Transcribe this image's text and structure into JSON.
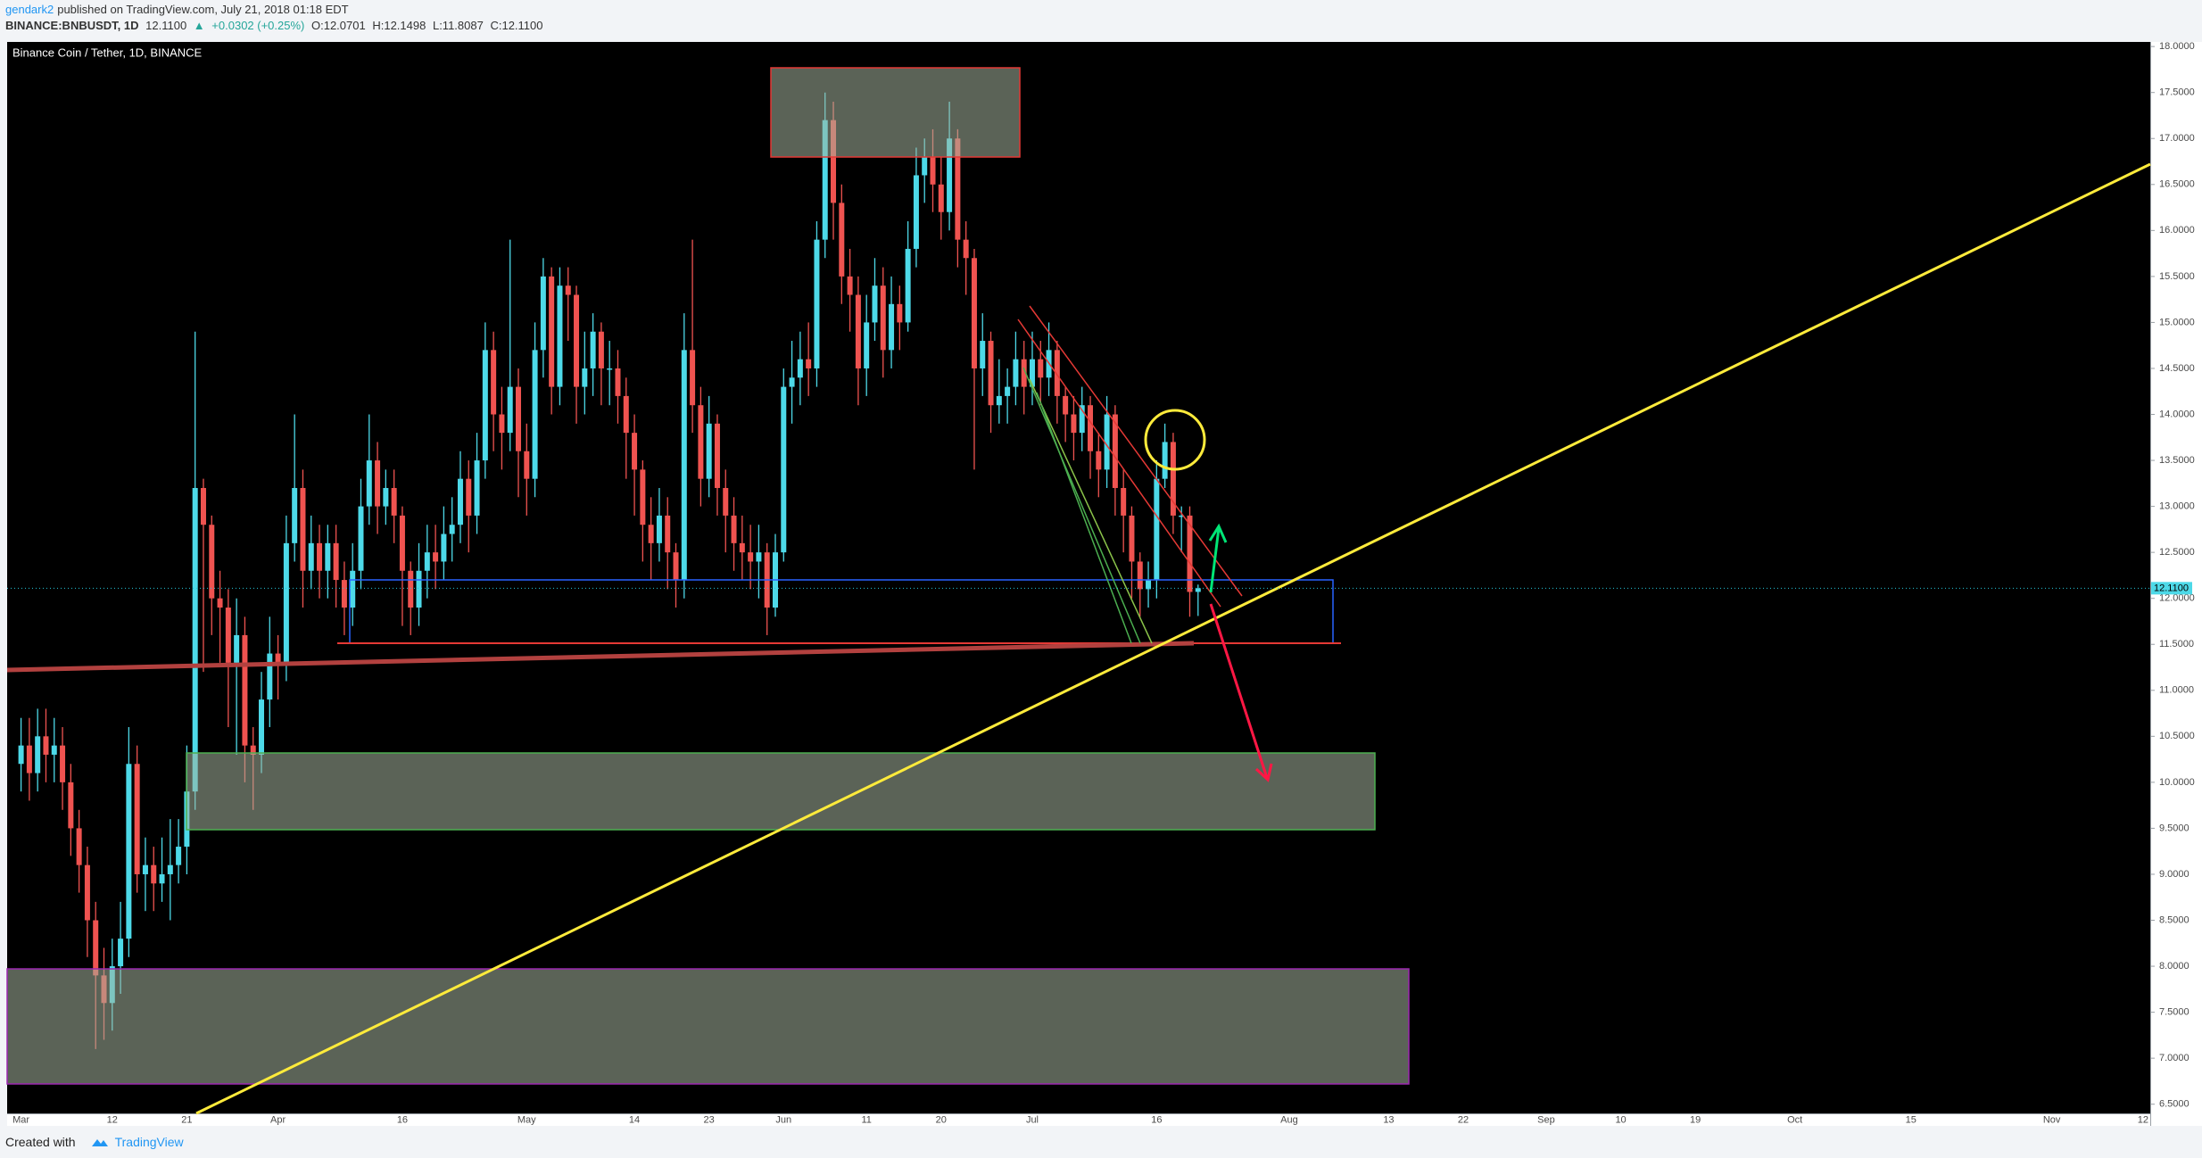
{
  "header": {
    "author": "gendark2",
    "published": "published on TradingView.com, July 21, 2018 01:18 EDT",
    "symbol": "BINANCE:BNBUSDT, 1D",
    "last": "12.1100",
    "arrow": "▲",
    "change": "+0.0302 (+0.25%)",
    "ohlc": [
      "O:12.0701",
      "H:12.1498",
      "L:11.8087",
      "C:12.1100"
    ]
  },
  "footer": {
    "text": "Created with",
    "brand": "TradingView"
  },
  "chart_data": {
    "type": "candlestick",
    "title": "Binance Coin / Tether, 1D, BINANCE",
    "up_color": "#4dd9e8",
    "down_color": "#ef5350",
    "grid": false,
    "ylim": [
      6.4,
      18.05
    ],
    "yticks": [
      {
        "value": 6.5,
        "label": "6.5000"
      },
      {
        "value": 7,
        "label": "7.0000"
      },
      {
        "value": 7.5,
        "label": "7.5000"
      },
      {
        "value": 8,
        "label": "8.0000"
      },
      {
        "value": 8.5,
        "label": "8.5000"
      },
      {
        "value": 9,
        "label": "9.0000"
      },
      {
        "value": 9.5,
        "label": "9.5000"
      },
      {
        "value": 10,
        "label": "10.0000"
      },
      {
        "value": 10.5,
        "label": "10.5000"
      },
      {
        "value": 11,
        "label": "11.0000"
      },
      {
        "value": 11.5,
        "label": "11.5000"
      },
      {
        "value": 12,
        "label": "12.0000"
      },
      {
        "value": 12.5,
        "label": "12.5000"
      },
      {
        "value": 13,
        "label": "13.0000"
      },
      {
        "value": 13.5,
        "label": "13.5000"
      },
      {
        "value": 14,
        "label": "14.0000"
      },
      {
        "value": 14.5,
        "label": "14.5000"
      },
      {
        "value": 15,
        "label": "15.0000"
      },
      {
        "value": 15.5,
        "label": "15.5000"
      },
      {
        "value": 16,
        "label": "16.0000"
      },
      {
        "value": 16.5,
        "label": "16.5000"
      },
      {
        "value": 17,
        "label": "17.0000"
      },
      {
        "value": 17.5,
        "label": "17.5000"
      },
      {
        "value": 18,
        "label": "18.0000"
      }
    ],
    "categories": [
      "Mar",
      null,
      null,
      null,
      null,
      null,
      null,
      null,
      null,
      null,
      null,
      "12",
      null,
      null,
      null,
      null,
      null,
      null,
      null,
      null,
      "21",
      null,
      null,
      null,
      null,
      null,
      null,
      null,
      null,
      null,
      null,
      "Apr",
      null,
      null,
      null,
      null,
      null,
      null,
      null,
      null,
      null,
      null,
      null,
      null,
      null,
      null,
      "16",
      null,
      null,
      null,
      null,
      null,
      null,
      null,
      null,
      null,
      null,
      null,
      null,
      null,
      null,
      "May",
      null,
      null,
      null,
      null,
      null,
      null,
      null,
      null,
      null,
      null,
      null,
      null,
      "14",
      null,
      null,
      null,
      null,
      null,
      null,
      null,
      null,
      "23",
      null,
      null,
      null,
      null,
      null,
      null,
      null,
      null,
      "Jun",
      null,
      null,
      null,
      null,
      null,
      null,
      null,
      null,
      null,
      "11",
      null,
      null,
      null,
      null,
      null,
      null,
      null,
      null,
      "20",
      null,
      null,
      null,
      null,
      null,
      null,
      null,
      null,
      null,
      null,
      "Jul",
      null,
      null,
      null,
      null,
      null,
      null,
      null,
      null,
      null,
      null,
      null,
      null,
      null,
      null,
      "16",
      null,
      null,
      null,
      null,
      null,
      null,
      null,
      null,
      null,
      null,
      null,
      null,
      null,
      null,
      null,
      "Aug",
      null,
      null,
      null,
      null,
      null,
      null,
      null,
      null,
      null,
      null,
      null,
      "13",
      null,
      null,
      null,
      null,
      null,
      null,
      null,
      null,
      "22",
      null,
      null,
      null,
      null,
      null,
      null,
      null,
      null,
      null,
      "Sep",
      null,
      null,
      null,
      null,
      null,
      null,
      null,
      null,
      "10",
      null,
      null,
      null,
      null,
      null,
      null,
      null,
      null,
      "19",
      null,
      null,
      null,
      null,
      null,
      null,
      null,
      null,
      null,
      null,
      null,
      "Oct",
      null,
      null,
      null,
      null,
      null,
      null,
      null,
      null,
      null,
      null,
      null,
      null,
      null,
      "15",
      null,
      null,
      null,
      null,
      null,
      null,
      null,
      null,
      null,
      null,
      null,
      null,
      null,
      null,
      null,
      null,
      "Nov",
      null,
      null,
      null,
      null,
      null,
      null,
      null,
      null,
      null,
      null,
      "12"
    ],
    "open": [
      10.2,
      10.4,
      10.1,
      10.5,
      10.3,
      10.4,
      10.0,
      9.5,
      9.1,
      8.5,
      7.9,
      7.6,
      8.0,
      8.3,
      10.2,
      9.0,
      9.1,
      8.9,
      9.0,
      9.1,
      9.3,
      9.9,
      13.2,
      12.8,
      12.0,
      11.9,
      11.3,
      11.6,
      10.4,
      10.3,
      10.9,
      11.4,
      11.3,
      12.6,
      13.2,
      12.3,
      12.6,
      12.3,
      12.6,
      12.2,
      11.9,
      12.3,
      13.0,
      13.5,
      13.0,
      13.2,
      12.9,
      12.3,
      11.9,
      12.3,
      12.5,
      12.4,
      12.7,
      12.8,
      13.3,
      12.9,
      13.5,
      14.7,
      14.0,
      13.8,
      14.3,
      13.6,
      13.3,
      14.7,
      15.5,
      14.3,
      15.4,
      15.3,
      14.3,
      14.5,
      14.9,
      14.5,
      14.5,
      14.2,
      13.8,
      13.4,
      12.8,
      12.6,
      12.9,
      12.5,
      12.2,
      14.7,
      14.1,
      13.3,
      13.9,
      13.2,
      12.9,
      12.6,
      12.5,
      12.4,
      12.5,
      11.9,
      12.5,
      14.3,
      14.4,
      14.6,
      14.5,
      15.9,
      17.2,
      16.3,
      15.5,
      15.3,
      14.5,
      15.0,
      15.4,
      14.7,
      15.2,
      15.0,
      15.8,
      16.6,
      16.8,
      16.5,
      16.2,
      17.0,
      15.9,
      15.7,
      14.5,
      14.8,
      14.1,
      14.2,
      14.3,
      14.6,
      14.3,
      14.6,
      14.4,
      14.7,
      14.2,
      14.0,
      13.8,
      14.1,
      13.6,
      13.4,
      14.0,
      13.2,
      12.9,
      12.4,
      12.1,
      12.2,
      13.3,
      13.7,
      12.9,
      12.9,
      12.0701,
      null,
      null,
      null,
      null,
      null,
      null,
      null,
      null,
      null,
      null,
      null,
      null,
      null,
      null,
      null,
      null,
      null,
      null,
      null,
      null,
      null,
      null,
      null,
      null,
      null,
      null,
      null,
      null,
      null,
      null,
      null,
      null,
      null,
      null,
      null,
      null,
      null,
      null,
      null,
      null,
      null,
      null,
      null,
      null,
      null,
      null,
      null,
      null,
      null,
      null,
      null,
      null,
      null,
      null,
      null,
      null,
      null,
      null,
      null,
      null,
      null,
      null,
      null,
      null,
      null,
      null,
      null,
      null,
      null,
      null,
      null,
      null,
      null,
      null,
      null,
      null,
      null,
      null,
      null,
      null,
      null,
      null,
      null,
      null,
      null,
      null,
      null,
      null,
      null,
      null,
      null,
      null,
      null,
      null,
      null,
      null,
      null,
      null,
      null,
      null,
      null,
      null,
      null,
      null,
      null,
      null,
      null,
      null,
      null,
      null,
      null,
      null,
      null,
      null
    ],
    "high": [
      10.7,
      10.7,
      10.8,
      10.8,
      10.7,
      10.6,
      10.2,
      9.7,
      9.3,
      8.7,
      8.2,
      8.3,
      8.7,
      10.6,
      10.4,
      9.4,
      9.3,
      9.4,
      9.6,
      9.6,
      10.4,
      14.9,
      13.3,
      12.9,
      12.3,
      12.1,
      12.0,
      11.8,
      10.6,
      11.2,
      11.8,
      11.6,
      12.9,
      14.0,
      13.4,
      12.9,
      12.8,
      12.8,
      12.8,
      12.4,
      12.6,
      13.3,
      14.0,
      13.7,
      13.4,
      13.4,
      13.0,
      12.4,
      12.6,
      12.8,
      12.8,
      13.0,
      13.1,
      13.6,
      13.5,
      13.8,
      15.0,
      14.9,
      14.3,
      15.9,
      14.5,
      13.9,
      15.0,
      15.7,
      15.6,
      15.6,
      15.6,
      15.4,
      14.9,
      15.1,
      15.0,
      14.8,
      14.7,
      14.4,
      14.0,
      13.5,
      13.1,
      13.2,
      13.1,
      12.6,
      15.1,
      15.9,
      14.3,
      14.2,
      14.0,
      13.4,
      13.1,
      12.9,
      12.8,
      12.8,
      12.6,
      12.7,
      14.5,
      14.8,
      14.9,
      15.0,
      16.1,
      17.5,
      17.4,
      16.5,
      15.8,
      15.5,
      15.3,
      15.7,
      15.6,
      15.5,
      15.4,
      16.1,
      16.9,
      17.0,
      17.1,
      16.8,
      17.4,
      17.1,
      16.1,
      15.8,
      15.1,
      14.9,
      14.6,
      14.5,
      14.9,
      14.8,
      14.9,
      14.8,
      15.0,
      14.8,
      14.3,
      14.2,
      14.3,
      14.2,
      13.8,
      14.2,
      14.1,
      13.4,
      13.0,
      12.5,
      12.4,
      13.5,
      13.9,
      13.8,
      13.0,
      13.0,
      12.1498,
      null,
      null,
      null,
      null,
      null,
      null,
      null,
      null,
      null,
      null,
      null,
      null,
      null,
      null,
      null,
      null,
      null,
      null,
      null,
      null,
      null,
      null,
      null,
      null,
      null,
      null,
      null,
      null,
      null,
      null,
      null,
      null,
      null,
      null,
      null,
      null,
      null,
      null,
      null,
      null,
      null,
      null,
      null,
      null,
      null,
      null,
      null,
      null,
      null,
      null,
      null,
      null,
      null,
      null,
      null,
      null,
      null,
      null,
      null,
      null,
      null,
      null,
      null,
      null,
      null,
      null,
      null,
      null,
      null,
      null,
      null,
      null,
      null,
      null,
      null,
      null,
      null,
      null,
      null,
      null,
      null,
      null,
      null,
      null,
      null,
      null,
      null,
      null,
      null,
      null,
      null,
      null,
      null,
      null,
      null,
      null,
      null,
      null,
      null,
      null,
      null,
      null,
      null,
      null,
      null,
      null,
      null,
      null,
      null,
      null,
      null,
      null,
      null,
      null
    ],
    "low": [
      9.9,
      9.8,
      9.9,
      10.0,
      10.0,
      9.7,
      9.2,
      8.8,
      8.1,
      7.1,
      7.2,
      7.3,
      7.7,
      8.1,
      8.8,
      8.6,
      8.6,
      8.7,
      8.5,
      8.9,
      9.0,
      9.7,
      11.2,
      11.6,
      11.3,
      10.6,
      10.3,
      10.0,
      9.7,
      10.1,
      10.6,
      10.9,
      11.1,
      12.4,
      11.9,
      12.1,
      12.0,
      12.0,
      11.9,
      11.6,
      11.7,
      12.1,
      12.8,
      12.7,
      12.8,
      12.6,
      11.7,
      11.6,
      11.7,
      12.0,
      12.1,
      12.2,
      12.4,
      12.6,
      12.5,
      12.7,
      13.3,
      13.6,
      13.4,
      13.6,
      13.1,
      12.9,
      13.1,
      14.4,
      14.0,
      14.1,
      14.8,
      13.9,
      14.0,
      14.2,
      14.1,
      14.1,
      13.9,
      13.3,
      12.9,
      12.4,
      12.2,
      12.4,
      12.1,
      11.9,
      12.0,
      13.8,
      13.0,
      13.1,
      12.9,
      12.5,
      12.3,
      12.2,
      12.1,
      12.0,
      11.6,
      11.8,
      12.4,
      13.9,
      14.1,
      14.2,
      14.3,
      15.7,
      15.9,
      15.2,
      14.9,
      14.1,
      14.2,
      14.8,
      14.4,
      14.5,
      14.7,
      14.9,
      15.6,
      16.3,
      16.2,
      15.9,
      16.0,
      15.6,
      15.3,
      13.4,
      14.2,
      13.8,
      13.9,
      13.9,
      14.1,
      14.0,
      14.1,
      14.1,
      14.2,
      13.9,
      13.7,
      13.5,
      13.6,
      13.3,
      13.1,
      13.2,
      12.9,
      12.5,
      12.0,
      11.8,
      11.9,
      12.0,
      13.2,
      12.7,
      12.5,
      11.8,
      11.8087,
      null,
      null,
      null,
      null,
      null,
      null,
      null,
      null,
      null,
      null,
      null,
      null,
      null,
      null,
      null,
      null,
      null,
      null,
      null,
      null,
      null,
      null,
      null,
      null,
      null,
      null,
      null,
      null,
      null,
      null,
      null,
      null,
      null,
      null,
      null,
      null,
      null,
      null,
      null,
      null,
      null,
      null,
      null,
      null,
      null,
      null,
      null,
      null,
      null,
      null,
      null,
      null,
      null,
      null,
      null,
      null,
      null,
      null,
      null,
      null,
      null,
      null,
      null,
      null,
      null,
      null,
      null,
      null,
      null,
      null,
      null,
      null,
      null,
      null,
      null,
      null,
      null,
      null,
      null,
      null,
      null,
      null,
      null,
      null,
      null,
      null,
      null,
      null,
      null,
      null,
      null,
      null,
      null,
      null,
      null,
      null,
      null,
      null,
      null,
      null,
      null,
      null,
      null,
      null,
      null,
      null,
      null,
      null,
      null,
      null,
      null,
      null,
      null,
      null
    ],
    "close": [
      10.4,
      10.1,
      10.5,
      10.3,
      10.4,
      10.0,
      9.5,
      9.1,
      8.5,
      7.9,
      7.6,
      8.0,
      8.3,
      10.2,
      9.0,
      9.1,
      8.9,
      9.0,
      9.1,
      9.3,
      9.9,
      13.2,
      12.8,
      12.0,
      11.9,
      11.3,
      11.6,
      10.4,
      10.3,
      10.9,
      11.4,
      11.3,
      12.6,
      13.2,
      12.3,
      12.6,
      12.3,
      12.6,
      12.2,
      11.9,
      12.3,
      13.0,
      13.5,
      13.0,
      13.2,
      12.9,
      12.3,
      11.9,
      12.3,
      12.5,
      12.4,
      12.7,
      12.8,
      13.3,
      12.9,
      13.5,
      14.7,
      14.0,
      13.8,
      14.3,
      13.6,
      13.3,
      14.7,
      15.5,
      14.3,
      15.4,
      15.3,
      14.3,
      14.5,
      14.9,
      14.5,
      14.5,
      14.2,
      13.8,
      13.4,
      12.8,
      12.6,
      12.9,
      12.5,
      12.2,
      14.7,
      14.1,
      13.3,
      13.9,
      13.2,
      12.9,
      12.6,
      12.5,
      12.4,
      12.5,
      11.9,
      12.5,
      14.3,
      14.4,
      14.6,
      14.5,
      15.9,
      17.2,
      16.3,
      15.5,
      15.3,
      14.5,
      15.0,
      15.4,
      14.7,
      15.2,
      15.0,
      15.8,
      16.6,
      16.8,
      16.5,
      16.2,
      17.0,
      15.9,
      15.7,
      14.5,
      14.8,
      14.1,
      14.2,
      14.3,
      14.6,
      14.3,
      14.6,
      14.4,
      14.7,
      14.2,
      14.0,
      13.8,
      14.1,
      13.6,
      13.4,
      14.0,
      13.2,
      12.9,
      12.4,
      12.1,
      12.2,
      13.3,
      13.7,
      12.9,
      12.9,
      12.07,
      12.11,
      null,
      null,
      null,
      null,
      null,
      null,
      null,
      null,
      null,
      null,
      null,
      null,
      null,
      null,
      null,
      null,
      null,
      null,
      null,
      null,
      null,
      null,
      null,
      null,
      null,
      null,
      null,
      null,
      null,
      null,
      null,
      null,
      null,
      null,
      null,
      null,
      null,
      null,
      null,
      null,
      null,
      null,
      null,
      null,
      null,
      null,
      null,
      null,
      null,
      null,
      null,
      null,
      null,
      null,
      null,
      null,
      null,
      null,
      null,
      null,
      null,
      null,
      null,
      null,
      null,
      null,
      null,
      null,
      null,
      null,
      null,
      null,
      null,
      null,
      null,
      null,
      null,
      null,
      null,
      null,
      null,
      null,
      null,
      null,
      null,
      null,
      null,
      null,
      null,
      null,
      null,
      null,
      null,
      null,
      null,
      null,
      null,
      null,
      null,
      null,
      null,
      null,
      null,
      null,
      null,
      null,
      null,
      null,
      null,
      null,
      null,
      null,
      null,
      null
    ]
  }
}
